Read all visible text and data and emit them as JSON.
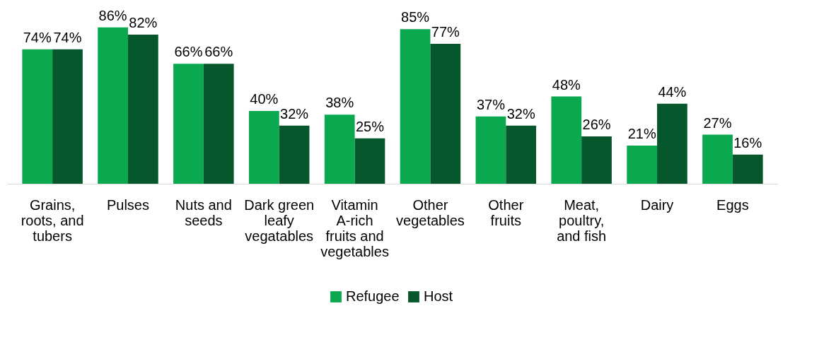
{
  "chart_data": {
    "type": "bar",
    "categories": [
      "Grains, roots, and tubers",
      "Pulses",
      "Nuts and seeds",
      "Dark green leafy vegatables",
      "Vitamin A-rich fruits and vegetables",
      "Other vegetables",
      "Other fruits",
      "Meat, poultry, and fish",
      "Dairy",
      "Eggs"
    ],
    "series": [
      {
        "name": "Refugee",
        "color": "#0aa84f",
        "values": [
          74,
          86,
          66,
          40,
          38,
          85,
          37,
          48,
          21,
          27
        ],
        "value_labels": [
          "74%",
          "86%",
          "66%",
          "40%",
          "38%",
          "85%",
          "37%",
          "48%",
          "21%",
          "27%"
        ]
      },
      {
        "name": "Host",
        "color": "#06582c",
        "values": [
          74,
          82,
          66,
          32,
          25,
          77,
          32,
          26,
          44,
          16
        ],
        "value_labels": [
          "74%",
          "82%",
          "66%",
          "32%",
          "25%",
          "77%",
          "32%",
          "26%",
          "44%",
          "16%"
        ]
      }
    ],
    "legend": "bottom"
  }
}
